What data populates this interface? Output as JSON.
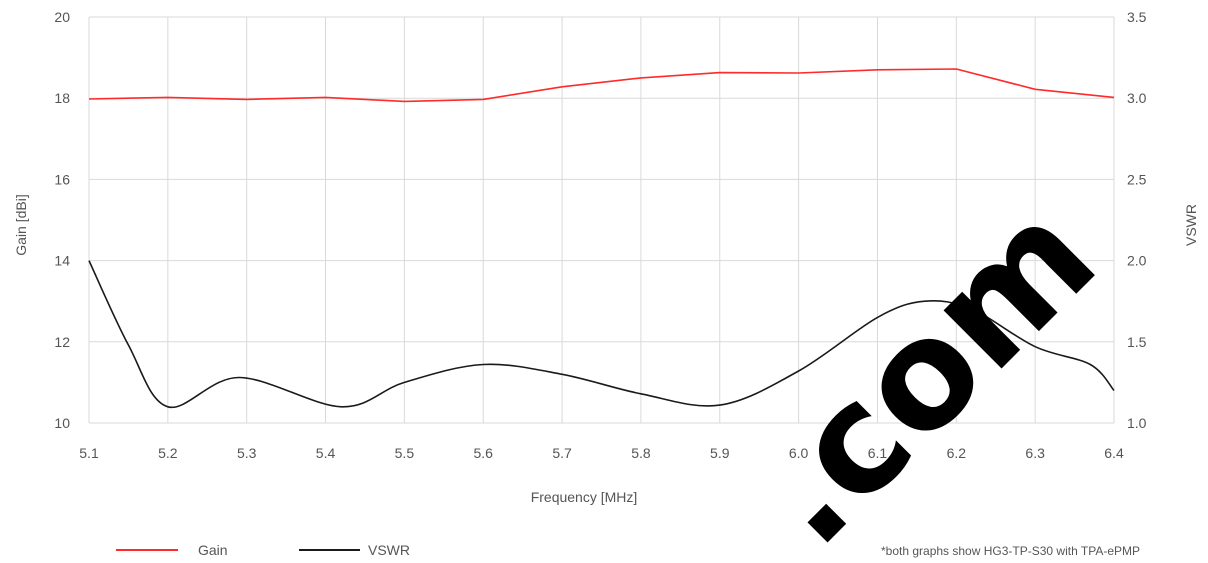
{
  "chart_data": {
    "type": "line",
    "title": "",
    "xlabel": "Frequency [MHz]",
    "ylabel_left": "Gain [dBi]",
    "ylabel_right": "VSWR",
    "xlim": [
      5.1,
      6.4
    ],
    "ylim_left": [
      10,
      20
    ],
    "ylim_right": [
      1.0,
      3.5
    ],
    "x_ticks": [
      "5.1",
      "5.2",
      "5.3",
      "5.4",
      "5.5",
      "5.6",
      "5.7",
      "5.8",
      "5.9",
      "6.0",
      "6.1",
      "6.2",
      "6.3",
      "6.4"
    ],
    "y_left_ticks": [
      "10",
      "12",
      "14",
      "16",
      "18",
      "20"
    ],
    "y_right_ticks": [
      "1.0",
      "1.5",
      "2.0",
      "2.5",
      "3.0",
      "3.5"
    ],
    "grid": true,
    "legend_position": "bottom-left",
    "series": [
      {
        "name": "Gain",
        "axis": "left",
        "color": "#ff2a2a",
        "x": [
          5.1,
          5.2,
          5.3,
          5.4,
          5.5,
          5.6,
          5.7,
          5.8,
          5.9,
          6.0,
          6.1,
          6.2,
          6.3,
          6.4
        ],
        "y": [
          17.98,
          18.02,
          17.97,
          18.02,
          17.92,
          17.97,
          18.28,
          18.5,
          18.63,
          18.62,
          18.7,
          18.72,
          18.22,
          18.02
        ]
      },
      {
        "name": "VSWR",
        "axis": "right",
        "color": "#1a1a1a",
        "x": [
          5.1,
          5.15,
          5.2,
          5.29,
          5.42,
          5.5,
          5.6,
          5.7,
          5.8,
          5.9,
          6.0,
          6.1,
          6.16,
          6.22,
          6.3,
          6.37,
          6.4
        ],
        "y": [
          2.0,
          1.48,
          1.1,
          1.28,
          1.1,
          1.25,
          1.36,
          1.3,
          1.18,
          1.11,
          1.32,
          1.65,
          1.75,
          1.7,
          1.47,
          1.36,
          1.2
        ]
      }
    ],
    "footnote": "*both graphs show HG3-TP-S30 with TPA-ePMP"
  },
  "watermark": {
    "text": ".com"
  }
}
